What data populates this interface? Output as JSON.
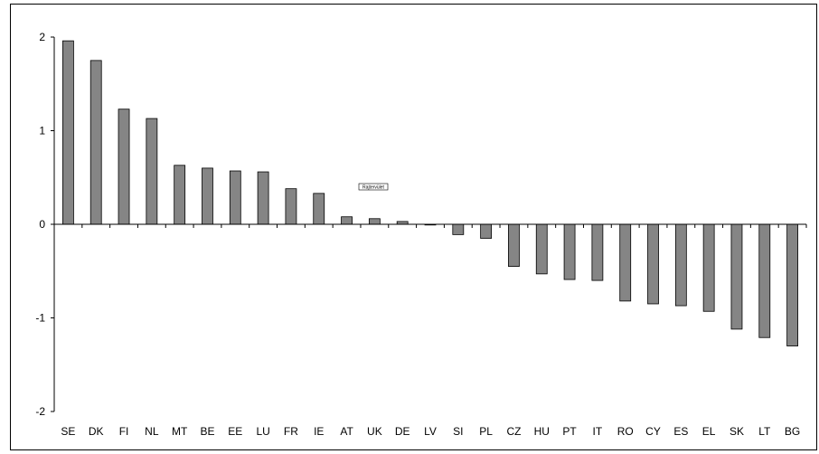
{
  "chart_data": {
    "type": "bar",
    "categories": [
      "SE",
      "DK",
      "FI",
      "NL",
      "MT",
      "BE",
      "EE",
      "LU",
      "FR",
      "IE",
      "AT",
      "UK",
      "DE",
      "LV",
      "SI",
      "PL",
      "CZ",
      "HU",
      "PT",
      "IT",
      "RO",
      "CY",
      "ES",
      "EL",
      "SK",
      "LT",
      "BG"
    ],
    "values": [
      1.96,
      1.75,
      1.23,
      1.13,
      0.63,
      0.6,
      0.57,
      0.56,
      0.38,
      0.33,
      0.08,
      0.06,
      0.03,
      0.0,
      -0.11,
      -0.15,
      -0.45,
      -0.53,
      -0.59,
      -0.6,
      -0.82,
      -0.85,
      -0.87,
      -0.93,
      -1.12,
      -1.21,
      -1.3
    ],
    "yticks": [
      "2",
      "1",
      "0",
      "-1",
      "-2"
    ],
    "ylim": [
      -2,
      2
    ],
    "annotation": "Rajtervület",
    "grid": false,
    "legend": "none",
    "bar_color": "#858585",
    "bar_stroke": "#000000"
  }
}
